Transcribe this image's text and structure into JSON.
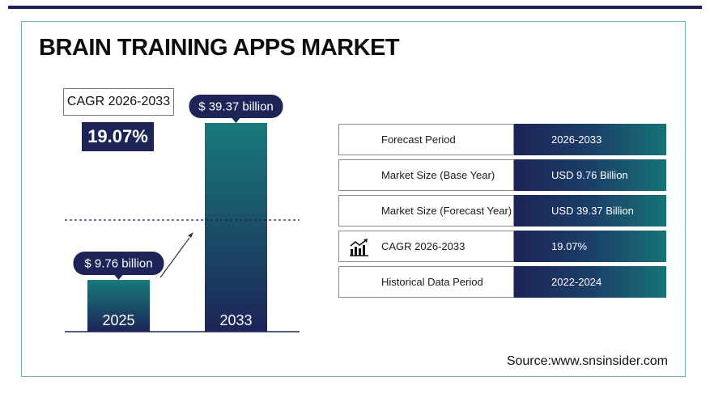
{
  "title": "BRAIN TRAINING APPS MARKET",
  "cagr_label": "CAGR 2026-2033",
  "cagr_value": "19.07%",
  "chart_data": {
    "type": "bar",
    "categories": [
      "2025",
      "2033"
    ],
    "values": [
      9.76,
      39.37
    ],
    "value_labels": [
      "$ 9.76 billion",
      "$ 39.37 billion"
    ],
    "ylim": [
      0,
      40
    ],
    "grid": false,
    "colors": {
      "bar_top": "#187a7a",
      "bar_bottom": "#1c2458"
    }
  },
  "table": {
    "rows": [
      {
        "label": "Forecast Period",
        "value": "2026-2033",
        "icon": ""
      },
      {
        "label": "Market Size (Base Year)",
        "value": "USD 9.76 Billion",
        "icon": ""
      },
      {
        "label": "Market Size (Forecast Year)",
        "value": "USD 39.37 Billion",
        "icon": ""
      },
      {
        "label": "CAGR 2026-2033",
        "value": "19.07%",
        "icon": "growth-chart-icon"
      },
      {
        "label": "Historical Data Period",
        "value": "2022-2024",
        "icon": ""
      }
    ]
  },
  "source": "Source:www.snsinsider.com",
  "colors": {
    "navy": "#1c2458",
    "teal": "#157377",
    "frame": "#6fb3b3"
  }
}
